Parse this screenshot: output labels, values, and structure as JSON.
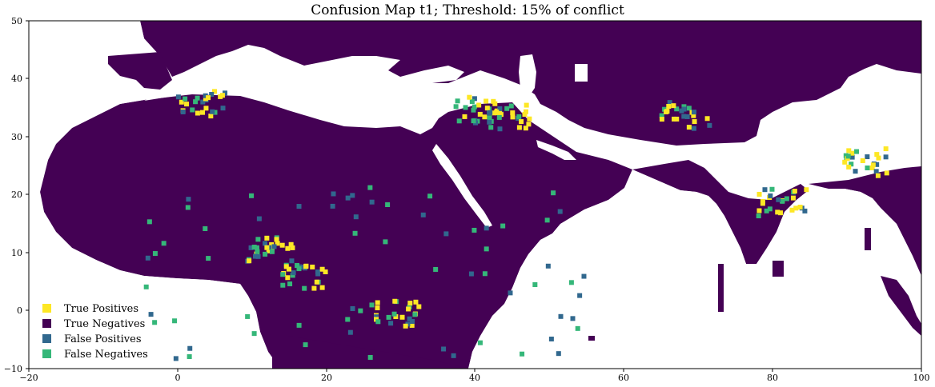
{
  "title": "Confusion Map t1; Threshold: 15% of conflict",
  "chart_data": {
    "type": "heatmap",
    "title": "Confusion Map t1; Threshold: 15% of conflict",
    "xlim": [
      -20,
      100
    ],
    "ylim": [
      -10,
      50
    ],
    "x_ticks": [
      "−20",
      "0",
      "20",
      "40",
      "60",
      "80",
      "100"
    ],
    "y_ticks": [
      "50",
      "40",
      "30",
      "20",
      "10",
      "0",
      "−10"
    ],
    "legend_position": "lower-left",
    "categories": [
      {
        "label": "True Positives",
        "color": "#fde725"
      },
      {
        "label": "True Negatives",
        "color": "#440154"
      },
      {
        "label": "False Positives",
        "color": "#31688e"
      },
      {
        "label": "False Negatives",
        "color": "#35b779"
      }
    ],
    "true_positive_clusters": [
      {
        "lon": 12,
        "lat": 11
      },
      {
        "lon": 17,
        "lat": 6
      },
      {
        "lon": 40,
        "lat": 35
      },
      {
        "lon": 44,
        "lat": 34
      },
      {
        "lon": 68,
        "lat": 34
      },
      {
        "lon": 81,
        "lat": 19
      },
      {
        "lon": 92,
        "lat": 26
      },
      {
        "lon": 29,
        "lat": 0
      },
      {
        "lon": 3,
        "lat": 36
      }
    ]
  }
}
